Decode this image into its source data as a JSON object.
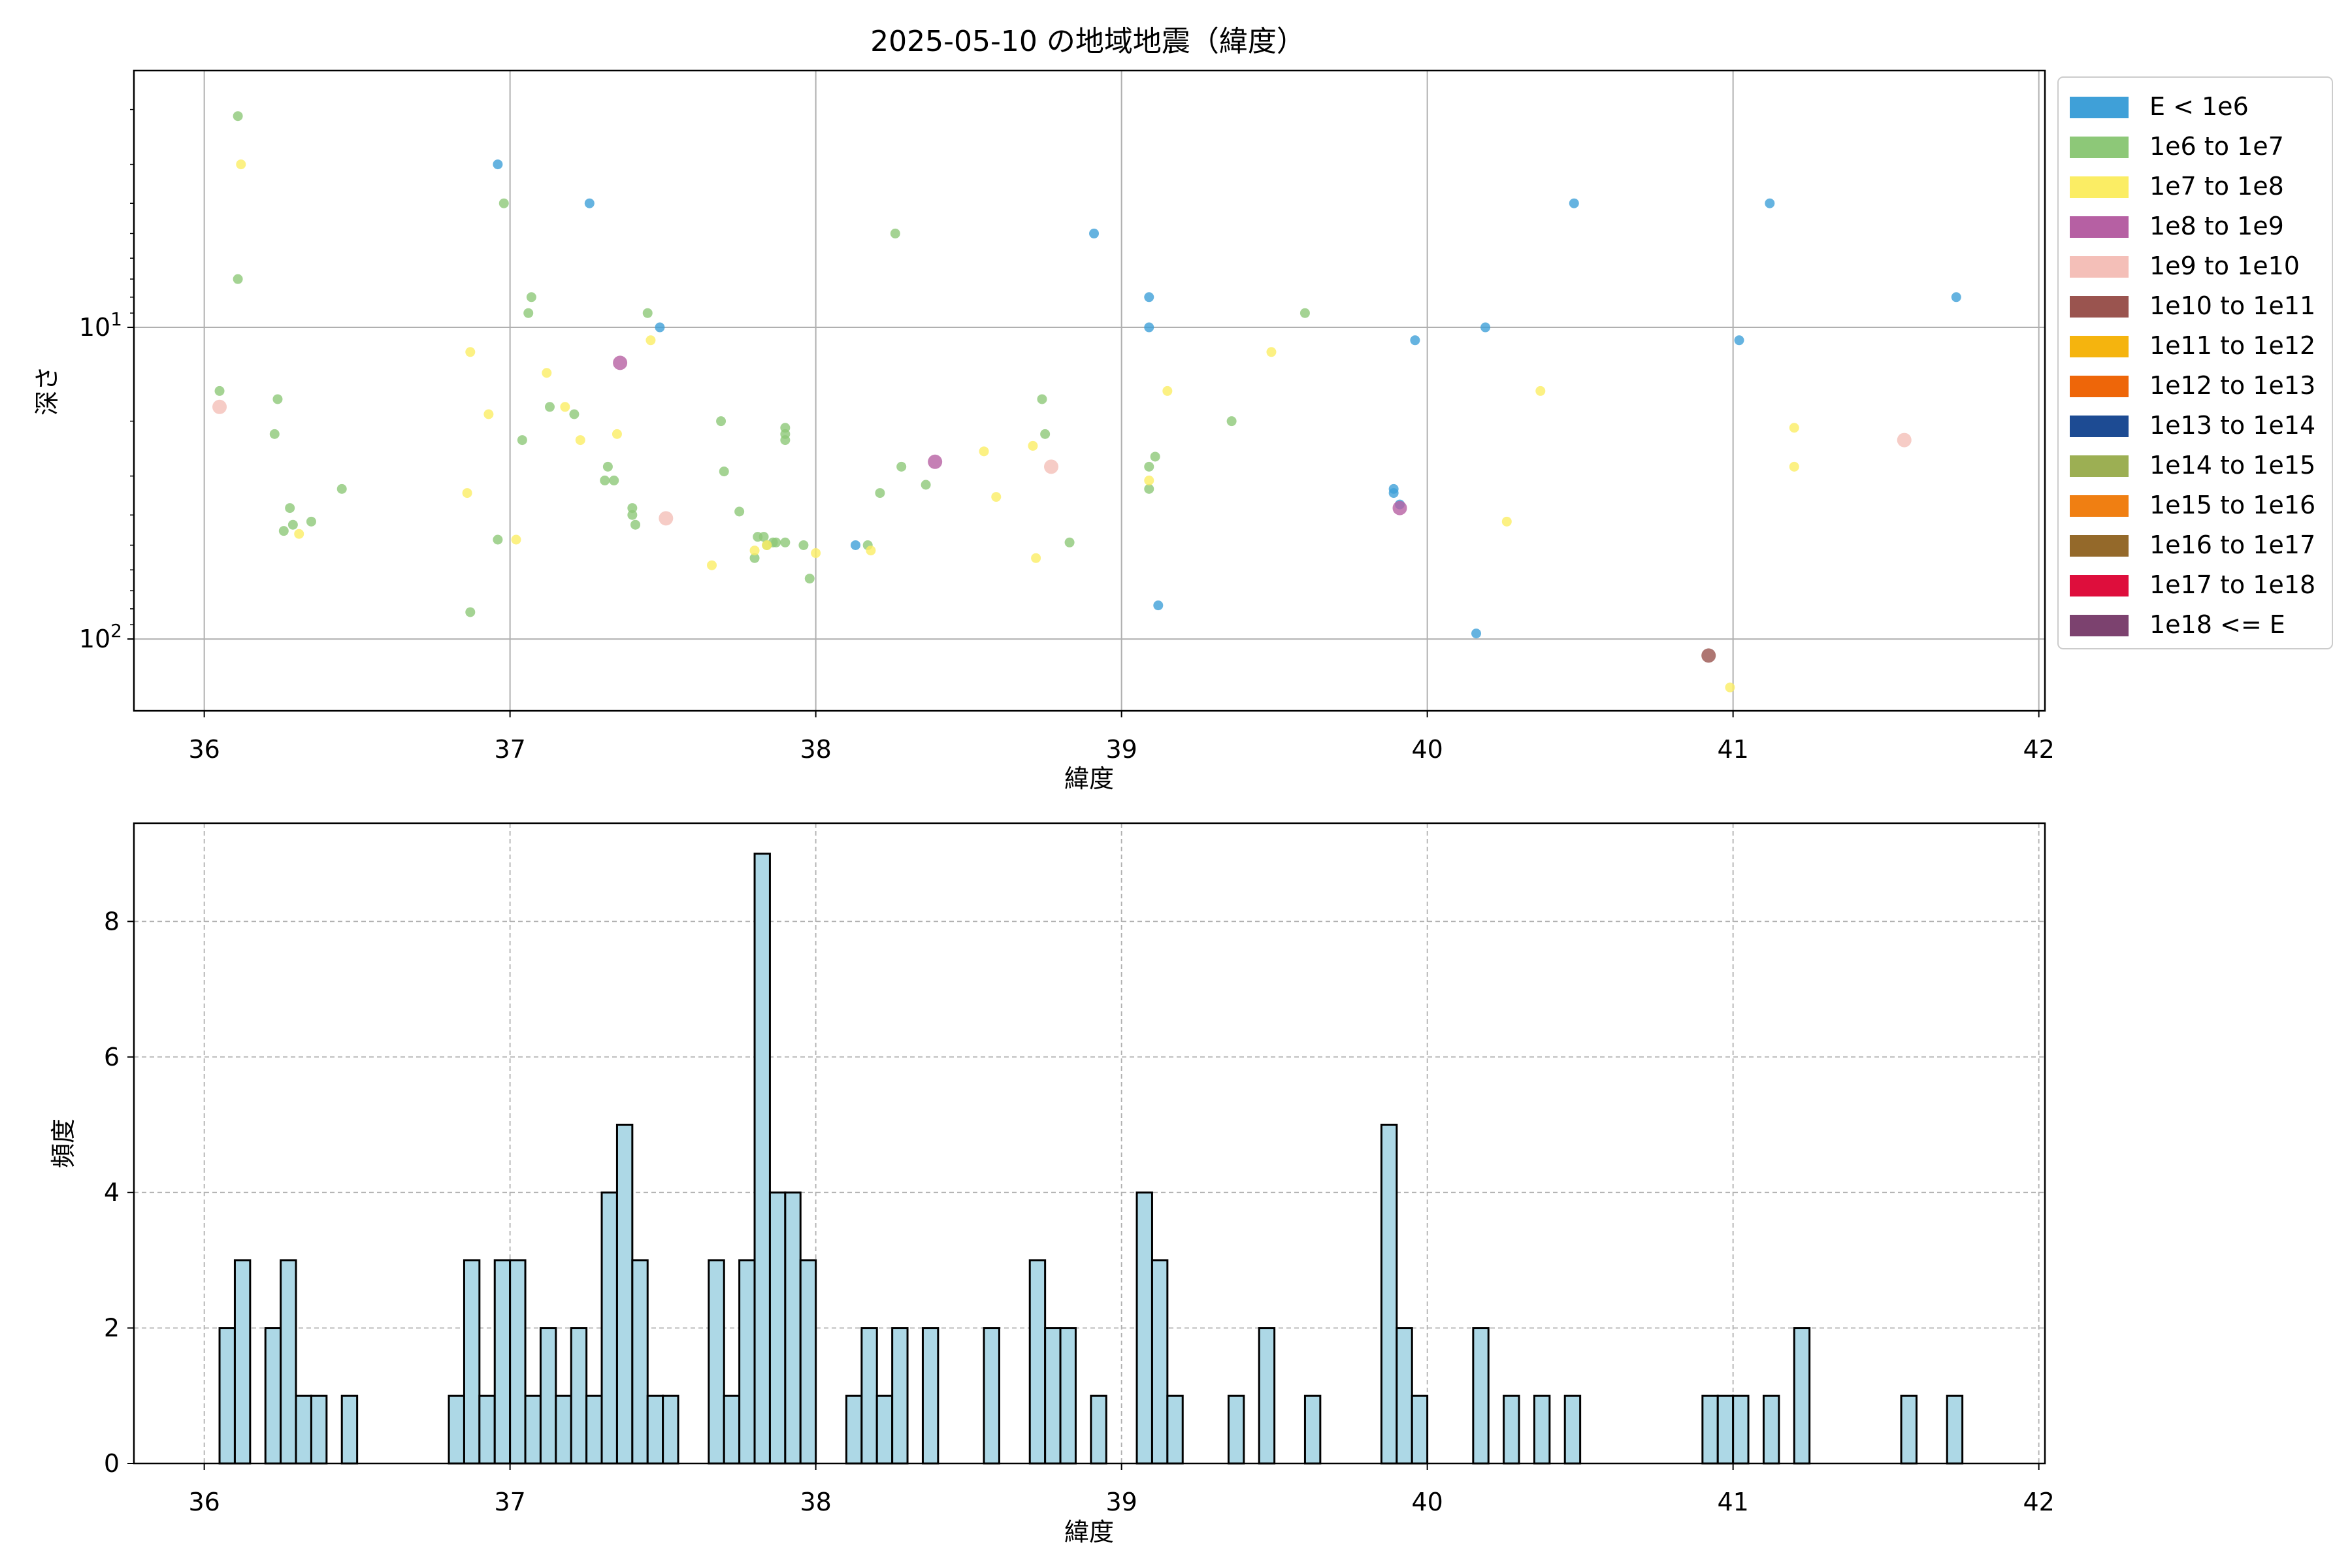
{
  "chart_data": [
    {
      "type": "scatter",
      "title": "2025-05-10 の地域地震（緯度）",
      "xlabel": "緯度",
      "ylabel": "深さ",
      "xlim": [
        35.77,
        42.02
      ],
      "ylim": [
        170,
        1.5
      ],
      "y_scale": "log",
      "y_inverted": true,
      "grid": true,
      "x_ticks": [
        36,
        37,
        38,
        39,
        40,
        41,
        42
      ],
      "y_ticks": [
        {
          "value": 10,
          "base": "10",
          "exp": "1"
        },
        {
          "value": 100,
          "base": "10",
          "exp": "2"
        }
      ],
      "legend_position": "outside-right",
      "legend": [
        {
          "label": "E < 1e6",
          "color": "#3fa0d8"
        },
        {
          "label": "1e6 to 1e7",
          "color": "#8dc878"
        },
        {
          "label": "1e7 to 1e8",
          "color": "#fbed64"
        },
        {
          "label": "1e8 to 1e9",
          "color": "#b660a3"
        },
        {
          "label": "1e9 to 1e10",
          "color": "#f4bfb8"
        },
        {
          "label": "1e10 to 1e11",
          "color": "#9a544f"
        },
        {
          "label": "1e11 to 1e12",
          "color": "#f5b40e"
        },
        {
          "label": "1e12 to 1e13",
          "color": "#ee6609"
        },
        {
          "label": "1e13 to 1e14",
          "color": "#1d4b93"
        },
        {
          "label": "1e14 to 1e15",
          "color": "#9caf53"
        },
        {
          "label": "1e15 to 1e16",
          "color": "#f07f12"
        },
        {
          "label": "1e16 to 1e17",
          "color": "#94692a"
        },
        {
          "label": "1e17 to 1e18",
          "color": "#de0e3c"
        },
        {
          "label": "1e18 <= E",
          "color": "#7c426f"
        }
      ],
      "series": [
        {
          "name": "E < 1e6",
          "points": [
            [
              36.96,
              3.0
            ],
            [
              37.26,
              4.0
            ],
            [
              37.49,
              10.0
            ],
            [
              38.13,
              50.0
            ],
            [
              38.91,
              5.0
            ],
            [
              39.09,
              8.0
            ],
            [
              39.09,
              10.0
            ],
            [
              39.12,
              78.0
            ],
            [
              39.89,
              33.0
            ],
            [
              39.89,
              34.0
            ],
            [
              39.91,
              37.0
            ],
            [
              39.96,
              11.0
            ],
            [
              40.16,
              96.0
            ],
            [
              40.19,
              10.0
            ],
            [
              40.48,
              4.0
            ],
            [
              41.02,
              11.0
            ],
            [
              41.12,
              4.0
            ],
            [
              41.73,
              8.0
            ]
          ]
        },
        {
          "name": "1e6 to 1e7",
          "points": [
            [
              36.05,
              16.0
            ],
            [
              36.11,
              2.1
            ],
            [
              36.11,
              7.0
            ],
            [
              36.23,
              22.0
            ],
            [
              36.24,
              17.0
            ],
            [
              36.26,
              45.0
            ],
            [
              36.28,
              38.0
            ],
            [
              36.29,
              43.0
            ],
            [
              36.35,
              42.0
            ],
            [
              36.45,
              33.0
            ],
            [
              36.87,
              82.0
            ],
            [
              36.96,
              48.0
            ],
            [
              36.98,
              4.0
            ],
            [
              37.04,
              23.0
            ],
            [
              37.06,
              9.0
            ],
            [
              37.07,
              8.0
            ],
            [
              37.13,
              18.0
            ],
            [
              37.21,
              19.0
            ],
            [
              37.31,
              31.0
            ],
            [
              37.32,
              28.0
            ],
            [
              37.34,
              31.0
            ],
            [
              37.4,
              38.0
            ],
            [
              37.4,
              40.0
            ],
            [
              37.41,
              43.0
            ],
            [
              37.45,
              9.0
            ],
            [
              37.69,
              20.0
            ],
            [
              37.7,
              29.0
            ],
            [
              37.75,
              39.0
            ],
            [
              37.8,
              55.0
            ],
            [
              37.81,
              47.0
            ],
            [
              37.83,
              47.0
            ],
            [
              37.84,
              50.0
            ],
            [
              37.86,
              49.0
            ],
            [
              37.87,
              49.0
            ],
            [
              37.9,
              21.0
            ],
            [
              37.9,
              22.0
            ],
            [
              37.9,
              23.0
            ],
            [
              37.9,
              49.0
            ],
            [
              37.96,
              50.0
            ],
            [
              37.98,
              64.0
            ],
            [
              38.17,
              50.0
            ],
            [
              38.21,
              34.0
            ],
            [
              38.28,
              28.0
            ],
            [
              38.36,
              32.0
            ],
            [
              38.26,
              5.0
            ],
            [
              38.74,
              17.0
            ],
            [
              38.75,
              22.0
            ],
            [
              38.83,
              49.0
            ],
            [
              39.09,
              28.0
            ],
            [
              39.09,
              33.0
            ],
            [
              39.11,
              26.0
            ],
            [
              39.36,
              20.0
            ],
            [
              39.6,
              9.0
            ]
          ]
        },
        {
          "name": "1e7 to 1e8",
          "points": [
            [
              36.12,
              3.0
            ],
            [
              36.31,
              46.0
            ],
            [
              36.86,
              34.0
            ],
            [
              36.87,
              12.0
            ],
            [
              36.93,
              19.0
            ],
            [
              37.02,
              48.0
            ],
            [
              37.12,
              14.0
            ],
            [
              37.18,
              18.0
            ],
            [
              37.23,
              23.0
            ],
            [
              37.35,
              22.0
            ],
            [
              37.46,
              11.0
            ],
            [
              37.66,
              58.0
            ],
            [
              37.8,
              52.0
            ],
            [
              37.84,
              50.0
            ],
            [
              38.0,
              53.0
            ],
            [
              38.18,
              52.0
            ],
            [
              38.55,
              25.0
            ],
            [
              38.59,
              35.0
            ],
            [
              38.71,
              24.0
            ],
            [
              38.72,
              55.0
            ],
            [
              39.09,
              31.0
            ],
            [
              39.15,
              16.0
            ],
            [
              39.49,
              12.0
            ],
            [
              40.26,
              42.0
            ],
            [
              40.37,
              16.0
            ],
            [
              40.99,
              143.0
            ],
            [
              41.2,
              21.0
            ],
            [
              41.2,
              28.0
            ]
          ]
        },
        {
          "name": "1e8 to 1e9",
          "points": [
            [
              37.36,
              13.0
            ],
            [
              38.39,
              27.0
            ],
            [
              39.91,
              38.0
            ]
          ]
        },
        {
          "name": "1e9 to 1e10",
          "points": [
            [
              36.05,
              18.0
            ],
            [
              37.51,
              41.0
            ],
            [
              38.77,
              28.0
            ],
            [
              41.56,
              23.0
            ]
          ]
        },
        {
          "name": "1e10 to 1e11",
          "points": [
            [
              40.92,
              113.0
            ]
          ]
        }
      ]
    },
    {
      "type": "bar",
      "subtype": "histogram",
      "xlabel": "緯度",
      "ylabel": "頻度",
      "xlim": [
        35.77,
        42.02
      ],
      "ylim": [
        0,
        9.45
      ],
      "bin_width": 0.05,
      "grid": true,
      "x_ticks": [
        36,
        37,
        38,
        39,
        40,
        41,
        42
      ],
      "y_ticks": [
        0,
        2,
        4,
        6,
        8
      ],
      "bar_color": "#add8e6",
      "edge_color": "#000000",
      "bins": [
        [
          36.05,
          2
        ],
        [
          36.1,
          3
        ],
        [
          36.2,
          2
        ],
        [
          36.25,
          3
        ],
        [
          36.3,
          1
        ],
        [
          36.35,
          1
        ],
        [
          36.45,
          1
        ],
        [
          36.8,
          1
        ],
        [
          36.85,
          3
        ],
        [
          36.9,
          1
        ],
        [
          36.95,
          3
        ],
        [
          37.0,
          3
        ],
        [
          37.05,
          1
        ],
        [
          37.1,
          2
        ],
        [
          37.15,
          1
        ],
        [
          37.2,
          2
        ],
        [
          37.25,
          1
        ],
        [
          37.3,
          4
        ],
        [
          37.35,
          5
        ],
        [
          37.4,
          3
        ],
        [
          37.45,
          1
        ],
        [
          37.5,
          1
        ],
        [
          37.65,
          3
        ],
        [
          37.7,
          1
        ],
        [
          37.75,
          3
        ],
        [
          37.8,
          9
        ],
        [
          37.85,
          4
        ],
        [
          37.9,
          4
        ],
        [
          37.95,
          3
        ],
        [
          38.1,
          1
        ],
        [
          38.15,
          2
        ],
        [
          38.2,
          1
        ],
        [
          38.25,
          2
        ],
        [
          38.35,
          2
        ],
        [
          38.55,
          2
        ],
        [
          38.7,
          3
        ],
        [
          38.75,
          2
        ],
        [
          38.8,
          2
        ],
        [
          38.9,
          1
        ],
        [
          39.05,
          4
        ],
        [
          39.1,
          3
        ],
        [
          39.15,
          1
        ],
        [
          39.35,
          1
        ],
        [
          39.45,
          2
        ],
        [
          39.6,
          1
        ],
        [
          39.85,
          5
        ],
        [
          39.9,
          2
        ],
        [
          39.95,
          1
        ],
        [
          40.15,
          2
        ],
        [
          40.25,
          1
        ],
        [
          40.35,
          1
        ],
        [
          40.45,
          1
        ],
        [
          40.9,
          1
        ],
        [
          40.95,
          1
        ],
        [
          41.0,
          1
        ],
        [
          41.1,
          1
        ],
        [
          41.2,
          2
        ],
        [
          41.55,
          1
        ],
        [
          41.7,
          1
        ]
      ]
    }
  ]
}
